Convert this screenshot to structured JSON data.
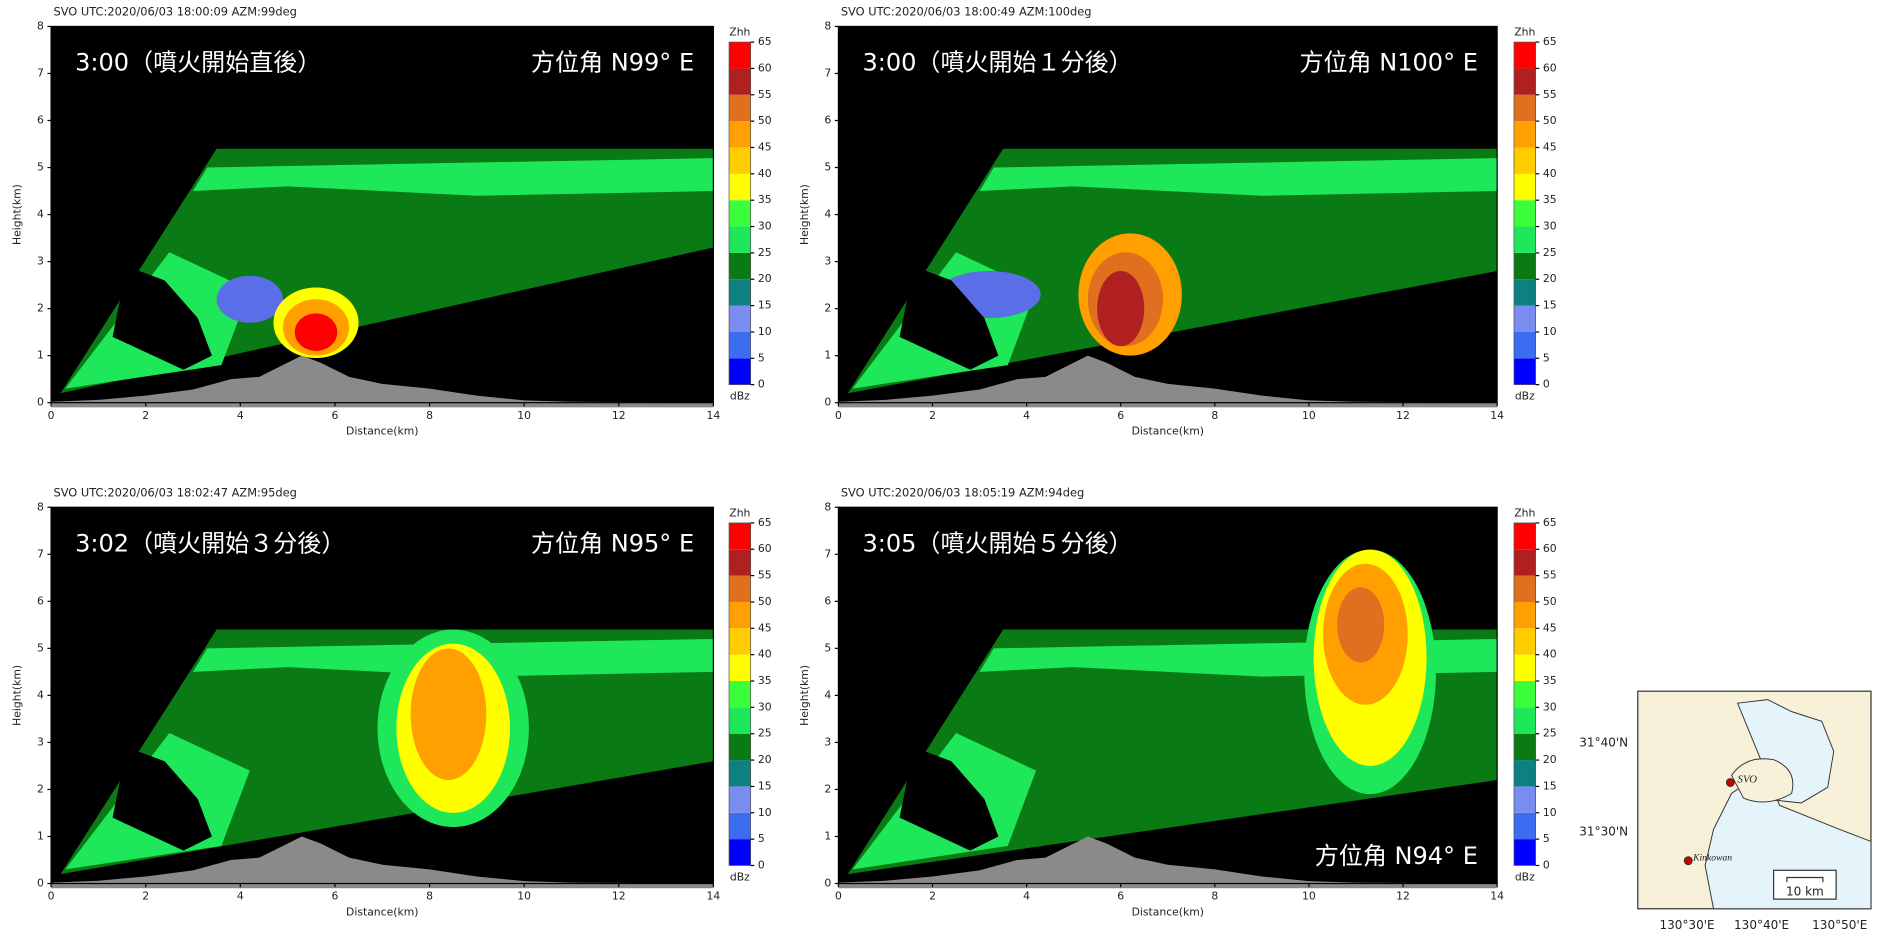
{
  "panels": [
    {
      "header": "SVO  UTC:2020/06/03 18:00:09 AZM:99deg",
      "time_label": "3:00（噴火開始直後）",
      "azimuth_label": "方位角 N99° E"
    },
    {
      "header": "SVO  UTC:2020/06/03 18:00:49 AZM:100deg",
      "time_label": "3:00（噴火開始１分後）",
      "azimuth_label": "方位角 N100° E"
    },
    {
      "header": "SVO  UTC:2020/06/03 18:02:47 AZM:95deg",
      "time_label": "3:02（噴火開始３分後）",
      "azimuth_label": "方位角 N95° E"
    },
    {
      "header": "SVO  UTC:2020/06/03 18:05:19 AZM:94deg",
      "time_label": "3:05（噴火開始５分後）",
      "azimuth_label": "方位角 N94° E"
    }
  ],
  "axes": {
    "x_label": "Distance(km)",
    "y_label": "Height(km)",
    "xticks": [
      0,
      2,
      4,
      6,
      8,
      10,
      12,
      14
    ],
    "yticks": [
      0,
      1,
      2,
      3,
      4,
      5,
      6,
      7,
      8
    ]
  },
  "colorbar": {
    "title": "Zhh",
    "unit": "dBz",
    "levels": [
      0,
      5,
      10,
      15,
      20,
      25,
      30,
      35,
      40,
      45,
      50,
      55,
      60,
      65
    ],
    "colors": [
      "#0000ff",
      "#3c6cf0",
      "#7a8cf0",
      "#0e8080",
      "#0a7a14",
      "#1ee85a",
      "#3cff3c",
      "#ffff00",
      "#ffcc00",
      "#ffa000",
      "#e07020",
      "#b02020",
      "#ff0000",
      "#e0104a"
    ]
  },
  "map": {
    "lat_labels": [
      "31°40'N",
      "31°30'N"
    ],
    "lon_labels": [
      "130°30'E",
      "130°40'E",
      "130°50'E"
    ],
    "site": "SVO",
    "place": "Kinkowan",
    "scale": "10 km"
  }
}
